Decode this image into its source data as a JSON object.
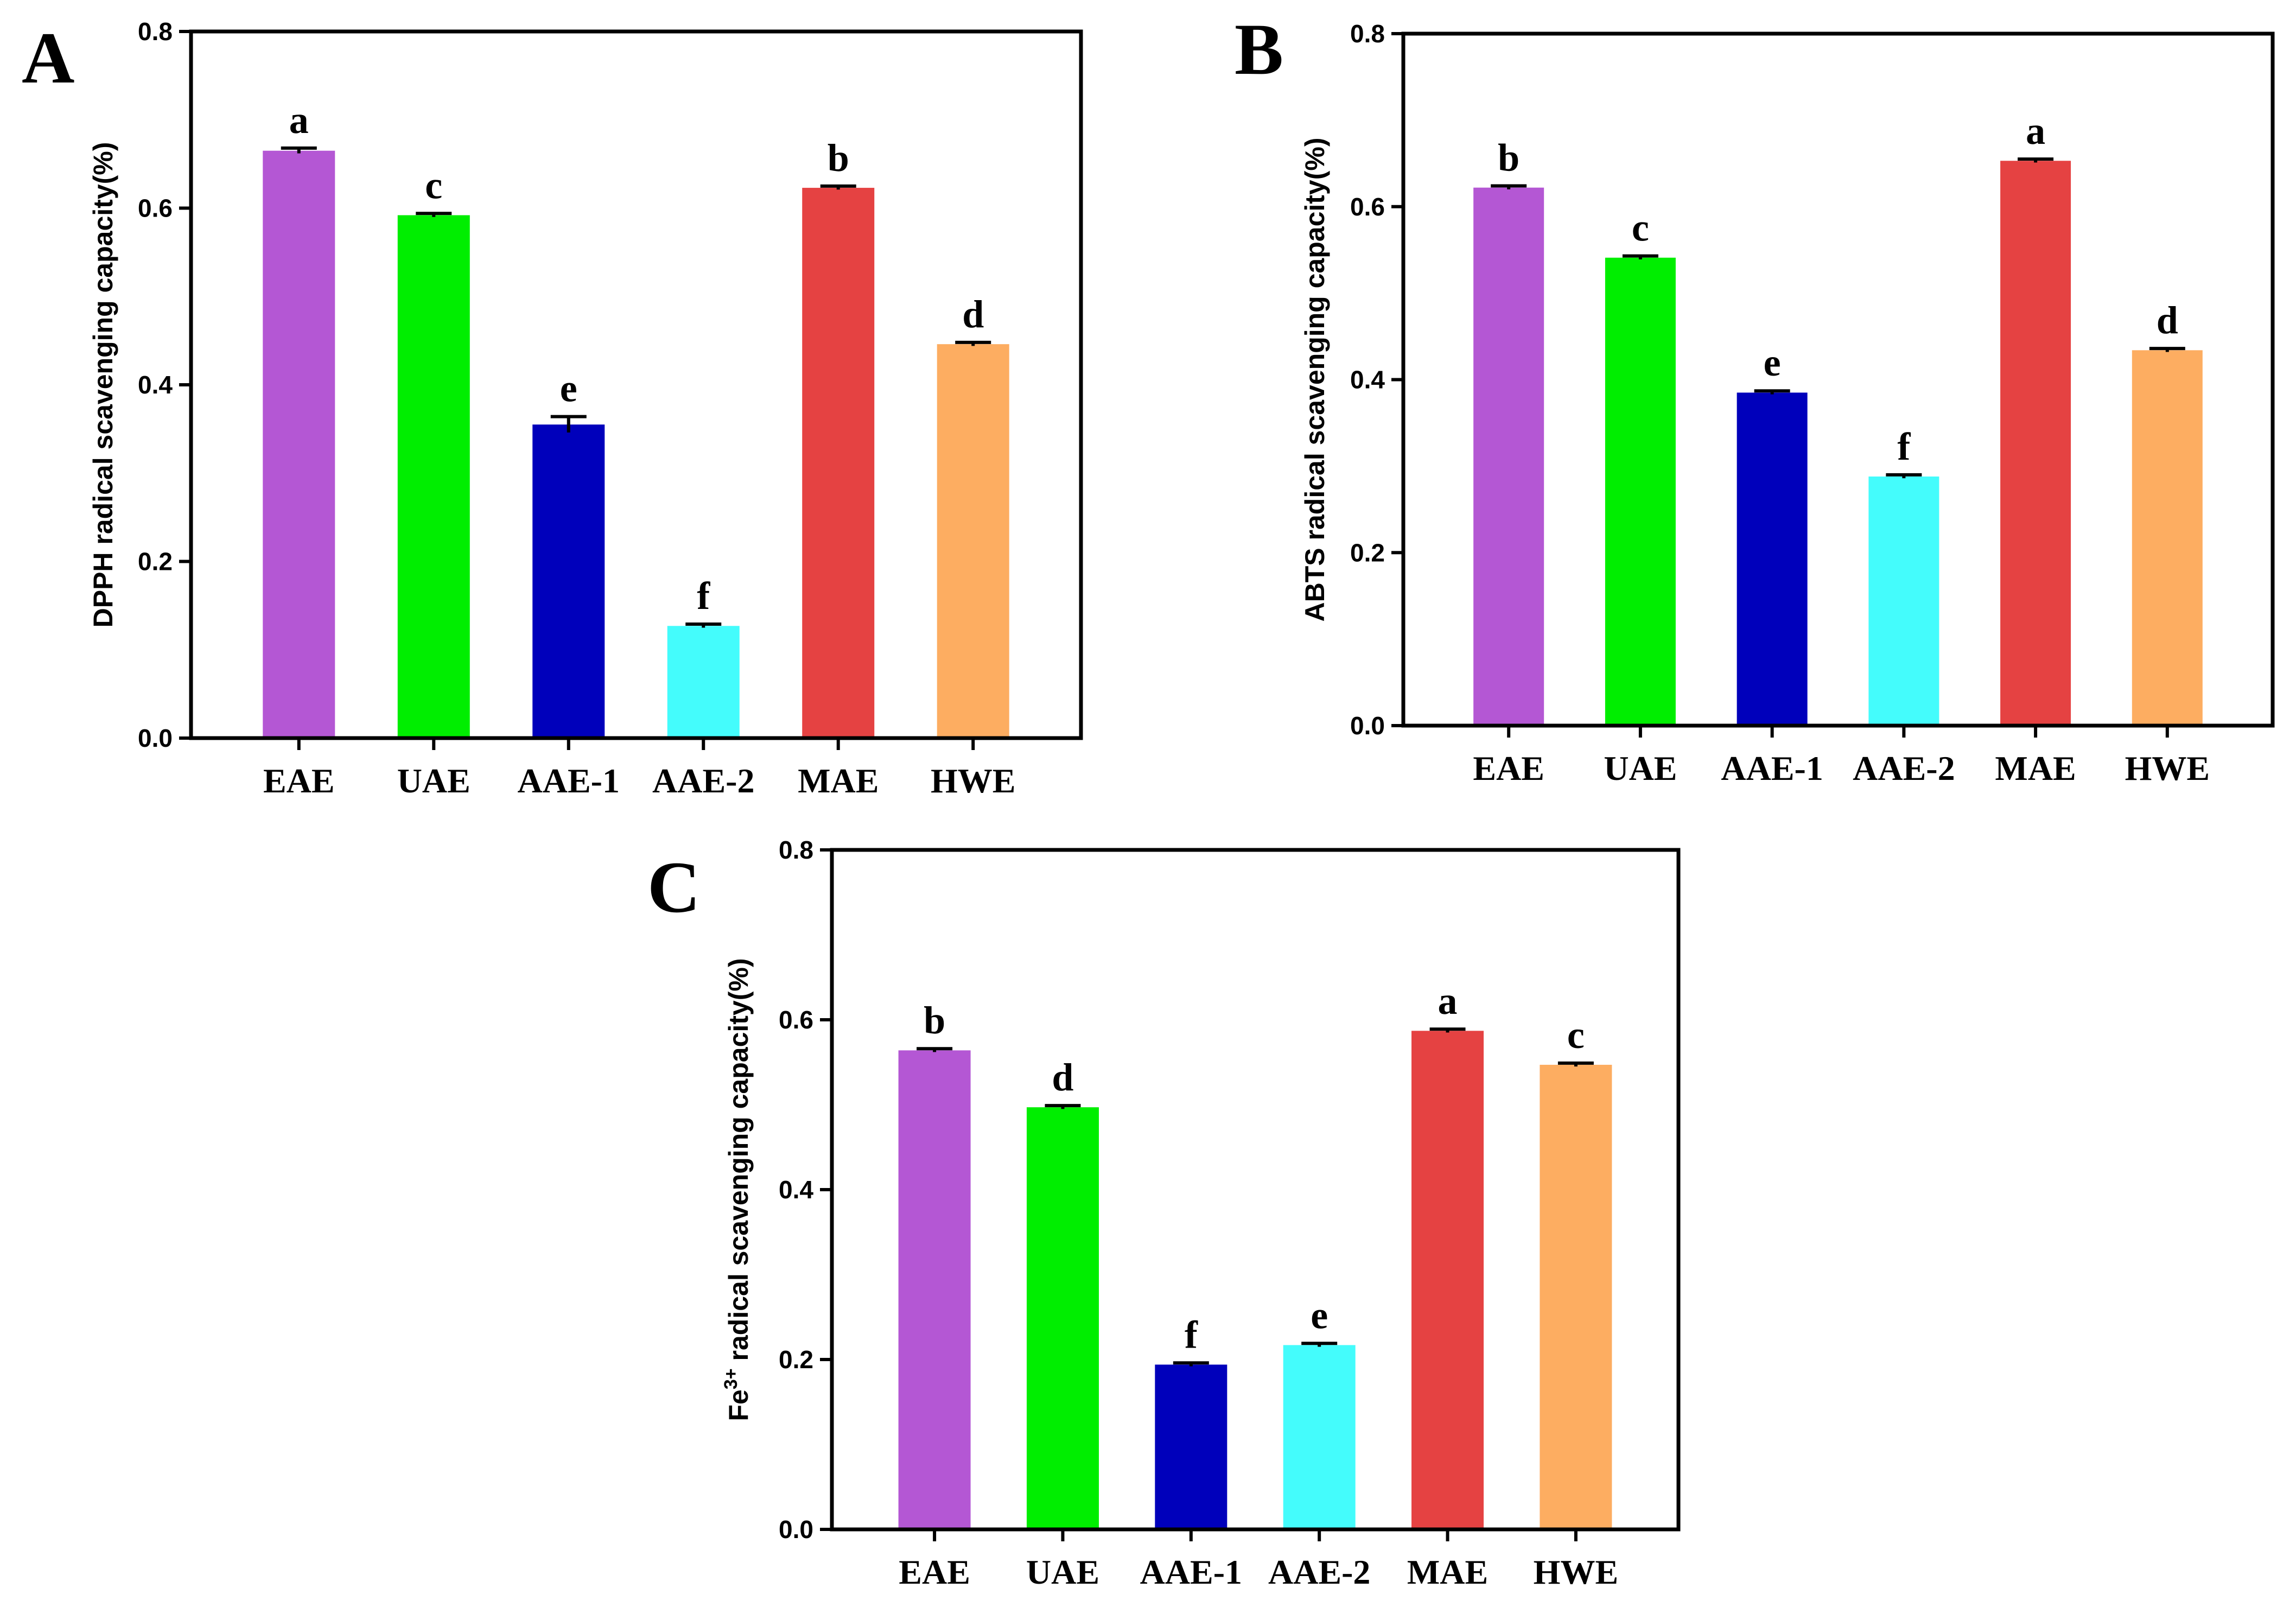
{
  "panel_colors": [
    "#b457d4",
    "#00ee00",
    "#0000bb",
    "#44fcfc",
    "#e54242",
    "#fdad61"
  ],
  "chart_data": [
    {
      "panel": "A",
      "type": "bar",
      "categories": [
        "EAE",
        "UAE",
        "AAE-1",
        "AAE-2",
        "MAE",
        "HWE"
      ],
      "values": [
        0.665,
        0.592,
        0.355,
        0.127,
        0.623,
        0.446
      ],
      "errors": [
        0.003,
        0.002,
        0.009,
        0.002,
        0.002,
        0.002
      ],
      "significance": [
        "a",
        "c",
        "e",
        "f",
        "b",
        "d"
      ],
      "ylabel": "DPPH radical scavenging capacity(%)",
      "ylabel_sup": "",
      "ylabel_rest": "",
      "ylim": [
        0,
        0.8
      ],
      "yticks": [
        "0.0",
        "0.2",
        "0.4",
        "0.6",
        "0.8"
      ],
      "grid": false
    },
    {
      "panel": "B",
      "type": "bar",
      "categories": [
        "EAE",
        "UAE",
        "AAE-1",
        "AAE-2",
        "MAE",
        "HWE"
      ],
      "values": [
        0.622,
        0.541,
        0.385,
        0.288,
        0.653,
        0.434
      ],
      "errors": [
        0.002,
        0.002,
        0.002,
        0.002,
        0.002,
        0.002
      ],
      "significance": [
        "b",
        "c",
        "e",
        "f",
        "a",
        "d"
      ],
      "ylabel": "ABTS radical scavenging capacity(%)",
      "ylabel_sup": "",
      "ylabel_rest": "",
      "ylim": [
        0,
        0.8
      ],
      "yticks": [
        "0.0",
        "0.2",
        "0.4",
        "0.6",
        "0.8"
      ],
      "grid": false
    },
    {
      "panel": "C",
      "type": "bar",
      "categories": [
        "EAE",
        "UAE",
        "AAE-1",
        "AAE-2",
        "MAE",
        "HWE"
      ],
      "values": [
        0.564,
        0.497,
        0.194,
        0.217,
        0.587,
        0.547
      ],
      "errors": [
        0.002,
        0.002,
        0.002,
        0.002,
        0.002,
        0.002
      ],
      "significance": [
        "b",
        "d",
        "f",
        "e",
        "a",
        "c"
      ],
      "ylabel": "Fe",
      "ylabel_sup": "3+",
      "ylabel_rest": " radical scavenging capacity(%)",
      "ylim": [
        0,
        0.8
      ],
      "yticks": [
        "0.0",
        "0.2",
        "0.4",
        "0.6",
        "0.8"
      ],
      "grid": false
    }
  ]
}
